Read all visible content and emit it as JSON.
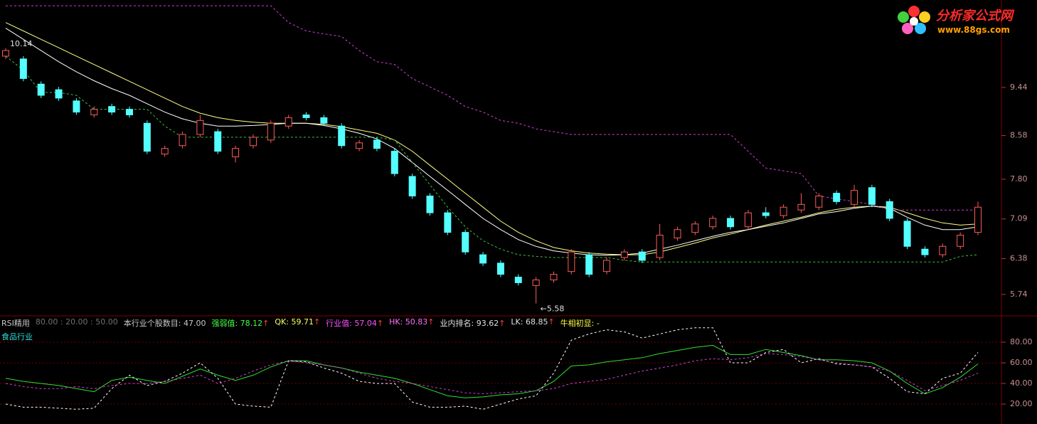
{
  "chart_data": [
    {
      "type": "candlestick",
      "logo_title": "分析家公式网",
      "logo_url": "www.88gs.com",
      "annotations": {
        "high": "10.14",
        "low": "←5.58"
      },
      "open": [
        10.0,
        9.95,
        9.5,
        9.4,
        9.2,
        8.95,
        9.1,
        9.05,
        8.8,
        8.25,
        8.4,
        8.6,
        8.65,
        8.2,
        8.4,
        8.5,
        8.75,
        8.95,
        8.9,
        8.75,
        8.35,
        8.5,
        8.3,
        7.85,
        7.5,
        7.2,
        6.85,
        6.45,
        6.3,
        6.05,
        5.9,
        6.0,
        6.15,
        6.45,
        6.15,
        6.4,
        6.5,
        6.4,
        6.75,
        6.85,
        6.95,
        7.1,
        6.95,
        7.2,
        7.15,
        7.25,
        7.3,
        7.55,
        7.35,
        7.65,
        7.4,
        7.05,
        6.55,
        6.45,
        6.6,
        6.85
      ],
      "high": [
        10.14,
        10.0,
        9.55,
        9.45,
        9.25,
        9.1,
        9.15,
        9.1,
        8.85,
        8.4,
        8.65,
        8.95,
        8.7,
        8.4,
        8.6,
        8.85,
        8.95,
        9.0,
        8.95,
        8.8,
        8.5,
        8.55,
        8.35,
        7.9,
        7.55,
        7.25,
        6.9,
        6.5,
        6.35,
        6.1,
        6.05,
        6.15,
        6.55,
        6.5,
        6.4,
        6.55,
        6.55,
        7.0,
        6.95,
        7.05,
        7.15,
        7.15,
        7.25,
        7.3,
        7.35,
        7.55,
        7.55,
        7.6,
        7.7,
        7.7,
        7.45,
        7.1,
        6.6,
        6.65,
        6.85,
        7.4
      ],
      "low": [
        9.95,
        9.55,
        9.25,
        9.2,
        8.95,
        8.9,
        8.95,
        8.9,
        8.25,
        8.2,
        8.35,
        8.55,
        8.25,
        8.1,
        8.35,
        8.45,
        8.7,
        8.85,
        8.75,
        8.35,
        8.3,
        8.3,
        7.85,
        7.45,
        7.15,
        6.8,
        6.45,
        6.25,
        6.05,
        5.9,
        5.58,
        5.95,
        6.1,
        6.05,
        6.1,
        6.35,
        6.3,
        6.35,
        6.7,
        6.8,
        6.9,
        6.9,
        6.9,
        7.1,
        7.1,
        7.2,
        7.25,
        7.35,
        7.3,
        7.3,
        7.05,
        6.55,
        6.4,
        6.4,
        6.55,
        6.8
      ],
      "close": [
        10.1,
        9.6,
        9.3,
        9.25,
        9.0,
        9.05,
        9.0,
        8.95,
        8.3,
        8.35,
        8.6,
        8.85,
        8.3,
        8.35,
        8.55,
        8.8,
        8.9,
        8.9,
        8.8,
        8.4,
        8.45,
        8.35,
        7.9,
        7.5,
        7.2,
        6.85,
        6.5,
        6.3,
        6.1,
        5.95,
        6.0,
        6.1,
        6.5,
        6.1,
        6.35,
        6.5,
        6.35,
        6.8,
        6.9,
        7.0,
        7.1,
        6.95,
        7.2,
        7.15,
        7.3,
        7.35,
        7.5,
        7.4,
        7.6,
        7.35,
        7.1,
        6.6,
        6.45,
        6.6,
        6.8,
        7.3
      ],
      "up_color": "#ff5a5a",
      "down_color": "#54ffff",
      "series": [
        {
          "color": "#ffff80",
          "dashed": false,
          "values": [
            10.6,
            10.45,
            10.3,
            10.15,
            10.0,
            9.85,
            9.7,
            9.55,
            9.4,
            9.25,
            9.1,
            8.98,
            8.9,
            8.85,
            8.82,
            8.8,
            8.8,
            8.8,
            8.78,
            8.74,
            8.68,
            8.62,
            8.5,
            8.3,
            8.05,
            7.8,
            7.55,
            7.3,
            7.05,
            6.85,
            6.7,
            6.58,
            6.52,
            6.48,
            6.46,
            6.45,
            6.45,
            6.5,
            6.58,
            6.66,
            6.75,
            6.82,
            6.9,
            6.98,
            7.05,
            7.12,
            7.2,
            7.26,
            7.3,
            7.32,
            7.3,
            7.2,
            7.1,
            7.02,
            6.98,
            7.0
          ]
        },
        {
          "color": "#ffffff",
          "dashed": false,
          "values": [
            10.5,
            10.3,
            10.1,
            9.9,
            9.72,
            9.56,
            9.42,
            9.3,
            9.15,
            9.0,
            8.88,
            8.8,
            8.75,
            8.75,
            8.76,
            8.78,
            8.8,
            8.8,
            8.76,
            8.7,
            8.62,
            8.52,
            8.35,
            8.1,
            7.85,
            7.6,
            7.35,
            7.1,
            6.9,
            6.72,
            6.6,
            6.52,
            6.48,
            6.45,
            6.44,
            6.45,
            6.48,
            6.55,
            6.62,
            6.7,
            6.78,
            6.85,
            6.9,
            6.96,
            7.02,
            7.1,
            7.18,
            7.22,
            7.28,
            7.32,
            7.28,
            7.12,
            6.98,
            6.9,
            6.9,
            6.95
          ]
        },
        {
          "color": "#40c040",
          "dashed": true,
          "values": [
            10.0,
            9.75,
            9.35,
            9.35,
            9.3,
            9.05,
            9.05,
            9.05,
            9.05,
            8.75,
            8.55,
            8.55,
            8.55,
            8.55,
            8.55,
            8.55,
            8.55,
            8.55,
            8.55,
            8.55,
            8.55,
            8.55,
            8.5,
            8.1,
            7.7,
            7.3,
            6.95,
            6.7,
            6.55,
            6.45,
            6.42,
            6.4,
            6.4,
            6.4,
            6.4,
            6.35,
            6.32,
            6.32,
            6.32,
            6.32,
            6.32,
            6.32,
            6.32,
            6.32,
            6.32,
            6.32,
            6.32,
            6.32,
            6.32,
            6.32,
            6.32,
            6.32,
            6.32,
            6.32,
            6.42,
            6.45
          ]
        },
        {
          "color": "#d040d0",
          "dashed": true,
          "values": [
            10.9,
            10.9,
            10.9,
            10.9,
            10.9,
            10.9,
            10.9,
            10.9,
            10.9,
            10.9,
            10.9,
            10.9,
            10.9,
            10.9,
            10.9,
            10.9,
            10.6,
            10.45,
            10.4,
            10.35,
            10.1,
            9.9,
            9.85,
            9.6,
            9.45,
            9.3,
            9.1,
            9.0,
            8.85,
            8.8,
            8.7,
            8.65,
            8.6,
            8.6,
            8.6,
            8.6,
            8.6,
            8.6,
            8.6,
            8.6,
            8.6,
            8.6,
            8.3,
            8.0,
            7.95,
            7.9,
            7.5,
            7.45,
            7.4,
            7.35,
            7.25,
            7.25,
            7.25,
            7.25,
            7.25,
            7.25
          ]
        }
      ],
      "ylim": [
        5.37,
        10.94
      ],
      "yticks": [
        9.44,
        8.58,
        {
          "value": 7.8,
          "label": "7.80"
        },
        7.09,
        6.38,
        5.74
      ],
      "grid": false
    },
    {
      "type": "line",
      "title": "RSI精用",
      "params": "80.00 : 20.00 : 50.00",
      "subtitle": "食品行业",
      "header": [
        {
          "text": "本行业个股数目: 47.00",
          "color": "#c8c8c8"
        },
        {
          "text": "强弱值: 78.12",
          "arrow": "↑",
          "color": "#40ff40"
        },
        {
          "text": "QK: 59.71",
          "arrow": "↑",
          "color": "#ffff60"
        },
        {
          "text": "行业值: 57.04",
          "arrow": "↑",
          "color": "#ff50ff"
        },
        {
          "text": "HK: 50.83",
          "arrow": "↑",
          "color": "#ff70ff"
        },
        {
          "text": "业内排名: 93.62",
          "arrow": "↑",
          "color": "#e0e0e0"
        },
        {
          "text": "LK: 68.85",
          "arrow": "↑",
          "color": "#e0e0e0"
        },
        {
          "text": "牛相初显: -",
          "color": "#ffff40"
        }
      ],
      "series": [
        {
          "color": "#30e030",
          "dashed": false,
          "values": [
            45,
            42,
            40,
            38,
            35,
            32,
            43,
            46,
            43,
            40,
            47,
            54,
            48,
            43,
            48,
            56,
            62,
            62,
            58,
            55,
            51,
            48,
            45,
            40,
            34,
            28,
            26,
            27,
            29,
            30,
            33,
            42,
            57,
            58,
            61,
            63,
            65,
            69,
            72,
            75,
            77,
            68,
            68,
            73,
            70,
            67,
            63,
            63,
            62,
            60,
            52,
            40,
            30,
            36,
            46,
            59
          ]
        },
        {
          "color": "#ffffff",
          "dashed": true,
          "values": [
            20,
            17,
            17,
            16,
            15,
            16,
            35,
            48,
            38,
            42,
            50,
            60,
            45,
            20,
            18,
            17,
            62,
            61,
            55,
            50,
            42,
            40,
            40,
            22,
            17,
            17,
            18,
            15,
            20,
            25,
            28,
            50,
            82,
            88,
            92,
            90,
            84,
            88,
            92,
            94,
            94,
            60,
            60,
            70,
            73,
            60,
            64,
            59,
            58,
            56,
            45,
            32,
            30,
            45,
            50,
            70
          ]
        },
        {
          "color": "#d040d0",
          "dashed": true,
          "values": [
            40,
            37,
            35,
            35,
            37,
            35,
            38,
            40,
            40,
            42,
            45,
            48,
            40,
            45,
            52,
            58,
            62,
            60,
            58,
            55,
            50,
            45,
            42,
            40,
            37,
            34,
            31,
            30,
            31,
            32,
            33,
            35,
            40,
            42,
            44,
            48,
            52,
            55,
            58,
            62,
            64,
            63,
            65,
            69,
            68,
            66,
            63,
            60,
            58,
            56,
            52,
            43,
            33,
            38,
            43,
            50
          ]
        }
      ],
      "ylim": [
        0.7,
        101.4
      ],
      "yticks": [
        {
          "value": 80,
          "label": "80.00"
        },
        {
          "value": 60,
          "label": "60.00"
        },
        {
          "value": 40,
          "label": "40.00"
        },
        {
          "value": 20,
          "label": "20.00"
        }
      ],
      "grid": true
    }
  ]
}
